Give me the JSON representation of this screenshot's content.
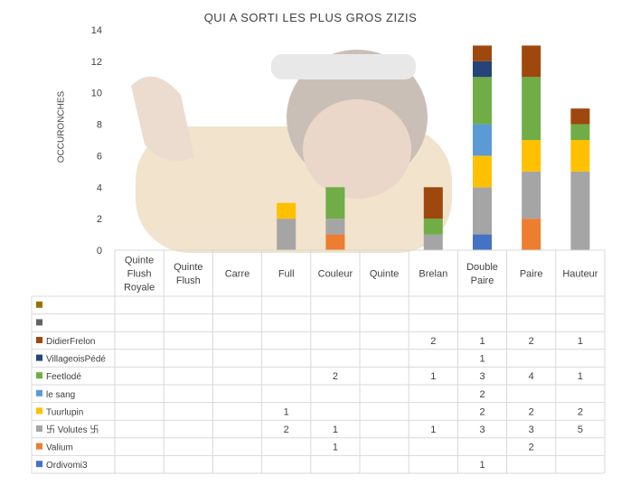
{
  "chart_data": {
    "type": "bar",
    "stacked": true,
    "title": "QUI A SORTI LES PLUS GROS ZIZIS",
    "ylabel": "OCCURONCHES",
    "xlabel": "",
    "ylim": [
      0,
      14
    ],
    "yticks": [
      0,
      2,
      4,
      6,
      8,
      10,
      12,
      14
    ],
    "grid": false,
    "legend": "data-table",
    "background_image": "shouting-man-photo",
    "categories": [
      "Quinte Flush Royale",
      "Quinte Flush",
      "Carre",
      "Full",
      "Couleur",
      "Quinte",
      "Brelan",
      "Double Paire",
      "Paire",
      "Hauteur"
    ],
    "series": [
      {
        "name": "Ordivomi3",
        "color": "#4472C4",
        "values": [
          null,
          null,
          null,
          null,
          null,
          null,
          null,
          1,
          null,
          null
        ]
      },
      {
        "name": "Valium",
        "color": "#ED7D31",
        "values": [
          null,
          null,
          null,
          null,
          1,
          null,
          null,
          null,
          2,
          null
        ]
      },
      {
        "name": "卐 Volutes 卐",
        "color": "#A5A5A5",
        "values": [
          null,
          null,
          null,
          2,
          1,
          null,
          1,
          3,
          3,
          5
        ]
      },
      {
        "name": "Tuurlupin",
        "color": "#FFC000",
        "values": [
          null,
          null,
          null,
          1,
          null,
          null,
          null,
          2,
          2,
          2
        ]
      },
      {
        "name": "le sang",
        "color": "#5B9BD5",
        "values": [
          null,
          null,
          null,
          null,
          null,
          null,
          null,
          2,
          null,
          null
        ]
      },
      {
        "name": "Feetlodé",
        "color": "#70AD47",
        "values": [
          null,
          null,
          null,
          null,
          2,
          null,
          1,
          3,
          4,
          1
        ]
      },
      {
        "name": "VillageoisPédé",
        "color": "#264478",
        "values": [
          null,
          null,
          null,
          null,
          null,
          null,
          null,
          1,
          null,
          null
        ]
      },
      {
        "name": "DidierFrelon",
        "color": "#9E480E",
        "values": [
          null,
          null,
          null,
          null,
          null,
          null,
          2,
          1,
          2,
          1
        ]
      },
      {
        "name": "",
        "color": "#636363",
        "values": [
          null,
          null,
          null,
          null,
          null,
          null,
          null,
          null,
          null,
          null
        ]
      },
      {
        "name": "",
        "color": "#997300",
        "values": [
          null,
          null,
          null,
          null,
          null,
          null,
          null,
          null,
          null,
          null
        ]
      }
    ]
  }
}
